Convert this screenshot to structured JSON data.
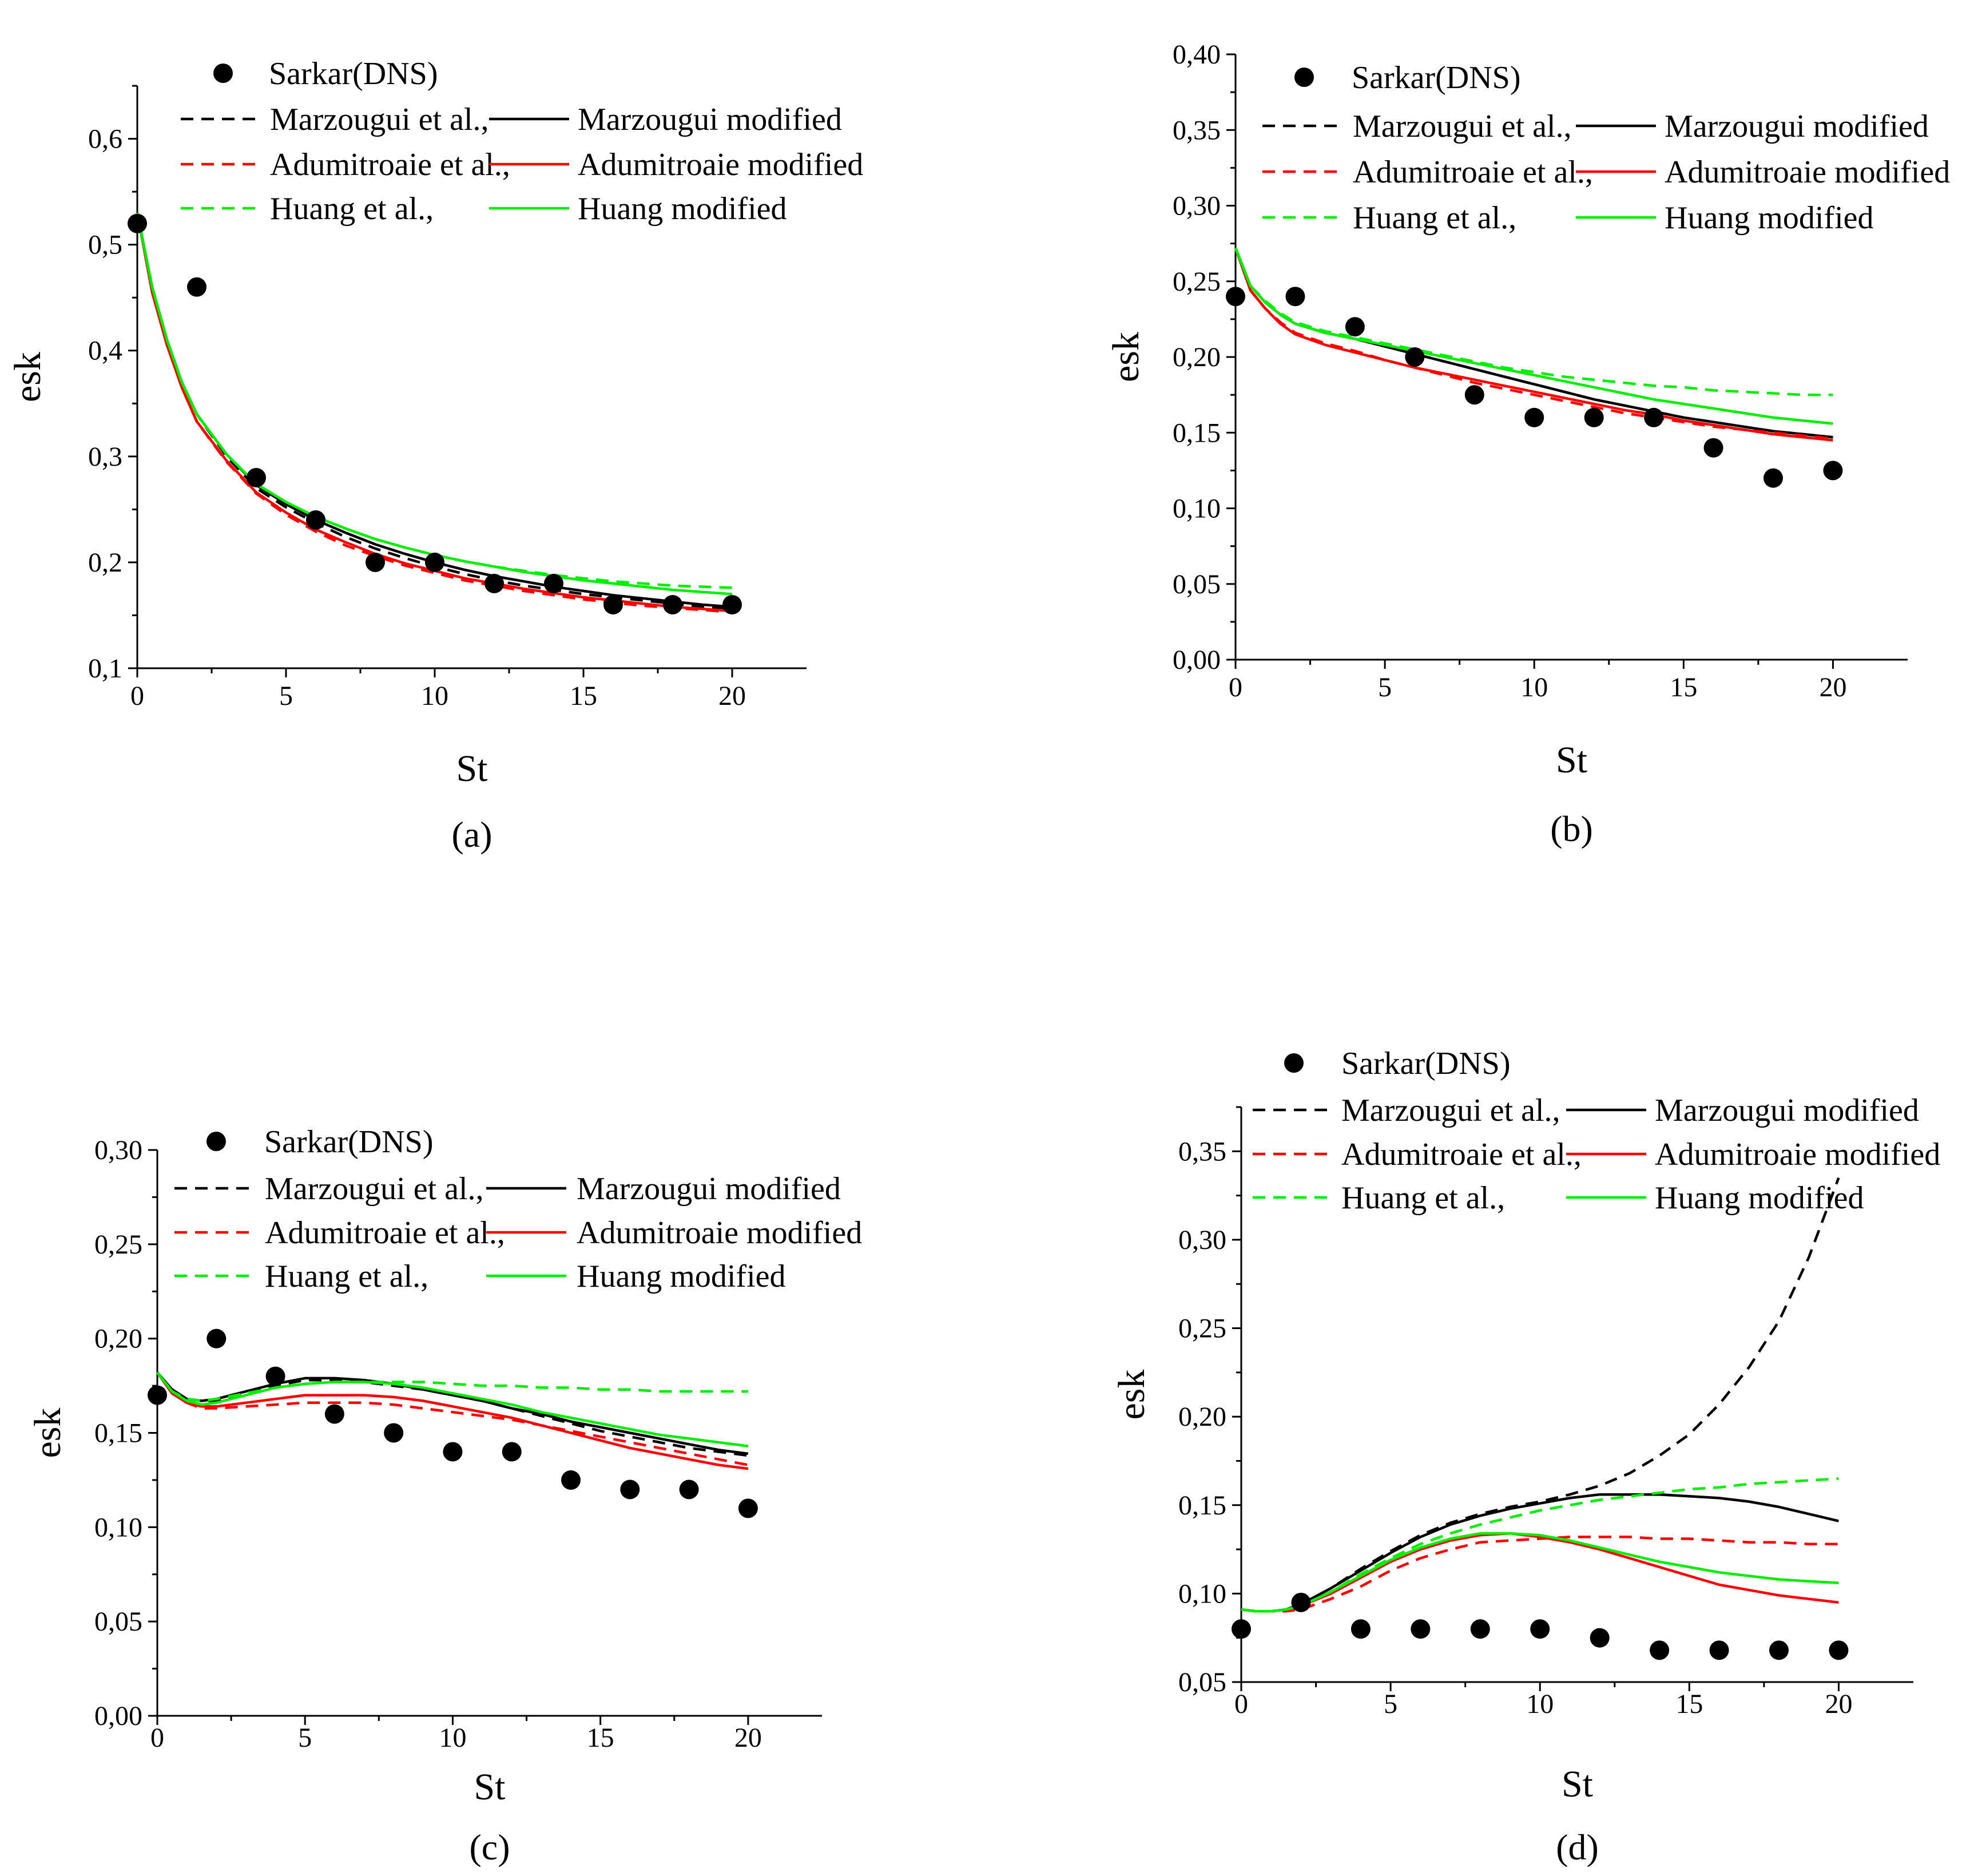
{
  "figure": {
    "legend": {
      "dns": "Sarkar(DNS)",
      "marzougui": "Marzougui et al.,",
      "marzougui_mod": "Marzougui modified",
      "adumitroaie": "Adumitroaie et al.,",
      "adumitroaie_mod": "Adumitroaie modified",
      "huang": "Huang et al.,",
      "huang_mod": "Huang modified"
    },
    "colors": {
      "marzougui": "#000000",
      "adumitroaie": "#ff0000",
      "huang": "#00ee00",
      "dns": "#000000"
    }
  },
  "chart_data": [
    {
      "type": "line",
      "panel": "(a)",
      "xlabel": "St",
      "ylabel": "esk",
      "xlim": [
        0,
        22.5
      ],
      "ylim": [
        0.1,
        0.65
      ],
      "xticks": [
        0,
        5,
        10,
        15,
        20
      ],
      "yticks": [
        0.1,
        0.2,
        0.3,
        0.4,
        0.5,
        0.6
      ],
      "ytick_labels": [
        "0,1",
        "0,2",
        "0,3",
        "0,4",
        "0,5",
        "0,6"
      ],
      "dns": {
        "x": [
          0,
          2,
          4,
          6,
          8,
          10,
          12,
          14,
          16,
          18,
          20
        ],
        "y": [
          0.52,
          0.46,
          0.28,
          0.24,
          0.2,
          0.2,
          0.18,
          0.18,
          0.16,
          0.16,
          0.16
        ]
      },
      "x": [
        0,
        0.5,
        1,
        1.5,
        2,
        3,
        4,
        5,
        6,
        7,
        8,
        9,
        10,
        11,
        12,
        13,
        14,
        15,
        16,
        17,
        18,
        19,
        20
      ],
      "series": [
        {
          "name": "Marzougui et al.",
          "model": "marzougui",
          "dash": true,
          "values": [
            0.53,
            0.46,
            0.41,
            0.37,
            0.34,
            0.3,
            0.27,
            0.252,
            0.237,
            0.224,
            0.213,
            0.204,
            0.196,
            0.189,
            0.183,
            0.178,
            0.174,
            0.17,
            0.167,
            0.164,
            0.161,
            0.158,
            0.156
          ]
        },
        {
          "name": "Marzougui modified",
          "model": "marzougui",
          "dash": false,
          "values": [
            0.53,
            0.46,
            0.41,
            0.37,
            0.34,
            0.302,
            0.273,
            0.255,
            0.24,
            0.228,
            0.217,
            0.208,
            0.2,
            0.193,
            0.187,
            0.182,
            0.177,
            0.173,
            0.169,
            0.166,
            0.163,
            0.16,
            0.158
          ]
        },
        {
          "name": "Adumitroaie et al.",
          "model": "adumitroaie",
          "dash": true,
          "values": [
            0.53,
            0.455,
            0.405,
            0.365,
            0.333,
            0.295,
            0.265,
            0.245,
            0.229,
            0.216,
            0.206,
            0.197,
            0.19,
            0.183,
            0.178,
            0.173,
            0.169,
            0.165,
            0.162,
            0.159,
            0.157,
            0.155,
            0.153
          ]
        },
        {
          "name": "Adumitroaie modified",
          "model": "adumitroaie",
          "dash": false,
          "values": [
            0.53,
            0.455,
            0.405,
            0.365,
            0.333,
            0.296,
            0.266,
            0.247,
            0.231,
            0.219,
            0.208,
            0.199,
            0.192,
            0.185,
            0.18,
            0.175,
            0.171,
            0.167,
            0.164,
            0.161,
            0.158,
            0.156,
            0.154
          ]
        },
        {
          "name": "Huang et al.",
          "model": "huang",
          "dash": true,
          "values": [
            0.53,
            0.46,
            0.41,
            0.37,
            0.34,
            0.302,
            0.274,
            0.257,
            0.243,
            0.232,
            0.222,
            0.214,
            0.207,
            0.201,
            0.196,
            0.192,
            0.188,
            0.185,
            0.182,
            0.18,
            0.178,
            0.177,
            0.176
          ]
        },
        {
          "name": "Huang modified",
          "model": "huang",
          "dash": false,
          "values": [
            0.53,
            0.46,
            0.41,
            0.37,
            0.34,
            0.302,
            0.274,
            0.257,
            0.243,
            0.232,
            0.222,
            0.214,
            0.207,
            0.201,
            0.196,
            0.191,
            0.187,
            0.183,
            0.18,
            0.177,
            0.174,
            0.172,
            0.17
          ]
        }
      ]
    },
    {
      "type": "line",
      "panel": "(b)",
      "xlabel": "St",
      "ylabel": "esk",
      "xlim": [
        0,
        22.5
      ],
      "ylim": [
        0,
        0.4
      ],
      "xticks": [
        0,
        5,
        10,
        15,
        20
      ],
      "yticks": [
        0,
        0.05,
        0.1,
        0.15,
        0.2,
        0.25,
        0.3,
        0.35,
        0.4
      ],
      "ytick_labels": [
        "0,00",
        "0,05",
        "0,10",
        "0,15",
        "0,20",
        "0,25",
        "0,30",
        "0,35",
        "0,40"
      ],
      "dns": {
        "x": [
          0,
          2,
          4,
          6,
          8,
          10,
          12,
          14,
          16,
          18,
          20
        ],
        "y": [
          0.24,
          0.24,
          0.22,
          0.2,
          0.175,
          0.16,
          0.16,
          0.16,
          0.14,
          0.12,
          0.125
        ]
      },
      "x": [
        0,
        0.5,
        1,
        1.5,
        2,
        3,
        4,
        5,
        6,
        7,
        8,
        9,
        10,
        11,
        12,
        13,
        14,
        15,
        16,
        17,
        18,
        19,
        20
      ],
      "series": [
        {
          "name": "Marzougui et al.",
          "model": "marzougui",
          "dash": true,
          "values": [
            0.272,
            0.247,
            0.236,
            0.228,
            0.222,
            0.216,
            0.212,
            0.207,
            0.202,
            0.197,
            0.192,
            0.187,
            0.182,
            0.177,
            0.172,
            0.168,
            0.164,
            0.16,
            0.157,
            0.154,
            0.151,
            0.149,
            0.147
          ]
        },
        {
          "name": "Marzougui modified",
          "model": "marzougui",
          "dash": false,
          "values": [
            0.272,
            0.247,
            0.236,
            0.228,
            0.222,
            0.216,
            0.212,
            0.207,
            0.202,
            0.197,
            0.192,
            0.187,
            0.182,
            0.177,
            0.172,
            0.168,
            0.164,
            0.16,
            0.157,
            0.154,
            0.151,
            0.149,
            0.147
          ]
        },
        {
          "name": "Adumitroaie et al.",
          "model": "adumitroaie",
          "dash": true,
          "values": [
            0.272,
            0.244,
            0.232,
            0.223,
            0.216,
            0.209,
            0.204,
            0.198,
            0.193,
            0.188,
            0.183,
            0.179,
            0.175,
            0.171,
            0.167,
            0.163,
            0.16,
            0.157,
            0.154,
            0.152,
            0.15,
            0.148,
            0.146
          ]
        },
        {
          "name": "Adumitroaie modified",
          "model": "adumitroaie",
          "dash": false,
          "values": [
            0.272,
            0.244,
            0.232,
            0.222,
            0.215,
            0.208,
            0.203,
            0.198,
            0.193,
            0.189,
            0.185,
            0.181,
            0.177,
            0.173,
            0.169,
            0.165,
            0.162,
            0.158,
            0.155,
            0.152,
            0.149,
            0.147,
            0.145
          ]
        },
        {
          "name": "Huang et al.",
          "model": "huang",
          "dash": true,
          "values": [
            0.272,
            0.247,
            0.237,
            0.229,
            0.223,
            0.217,
            0.213,
            0.209,
            0.205,
            0.201,
            0.197,
            0.193,
            0.19,
            0.187,
            0.185,
            0.183,
            0.181,
            0.18,
            0.178,
            0.177,
            0.176,
            0.175,
            0.175
          ]
        },
        {
          "name": "Huang modified",
          "model": "huang",
          "dash": false,
          "values": [
            0.272,
            0.247,
            0.236,
            0.228,
            0.222,
            0.216,
            0.212,
            0.208,
            0.204,
            0.2,
            0.196,
            0.192,
            0.188,
            0.184,
            0.18,
            0.176,
            0.172,
            0.169,
            0.166,
            0.163,
            0.16,
            0.158,
            0.156
          ]
        }
      ]
    },
    {
      "type": "line",
      "panel": "(c)",
      "xlabel": "St",
      "ylabel": "esk",
      "xlim": [
        0,
        22.5
      ],
      "ylim": [
        0,
        0.3
      ],
      "xticks": [
        0,
        5,
        10,
        15,
        20
      ],
      "yticks": [
        0,
        0.05,
        0.1,
        0.15,
        0.2,
        0.25,
        0.3
      ],
      "ytick_labels": [
        "0,00",
        "0,05",
        "0,10",
        "0,15",
        "0,20",
        "0,25",
        "0,30"
      ],
      "dns": {
        "x": [
          0,
          2,
          4,
          6,
          8,
          10,
          12,
          14,
          16,
          18,
          20
        ],
        "y": [
          0.17,
          0.2,
          0.18,
          0.16,
          0.15,
          0.14,
          0.14,
          0.125,
          0.12,
          0.12,
          0.11
        ]
      },
      "x": [
        0,
        0.5,
        1,
        1.5,
        2,
        3,
        4,
        5,
        6,
        7,
        8,
        9,
        10,
        11,
        12,
        13,
        14,
        15,
        16,
        17,
        18,
        19,
        20
      ],
      "series": [
        {
          "name": "Marzougui et al.",
          "model": "marzougui",
          "dash": true,
          "values": [
            0.182,
            0.173,
            0.168,
            0.167,
            0.167,
            0.171,
            0.175,
            0.178,
            0.178,
            0.177,
            0.175,
            0.173,
            0.17,
            0.167,
            0.163,
            0.159,
            0.155,
            0.151,
            0.148,
            0.145,
            0.142,
            0.14,
            0.138
          ]
        },
        {
          "name": "Marzougui modified",
          "model": "marzougui",
          "dash": false,
          "values": [
            0.182,
            0.173,
            0.168,
            0.167,
            0.168,
            0.172,
            0.176,
            0.179,
            0.179,
            0.178,
            0.176,
            0.173,
            0.17,
            0.167,
            0.163,
            0.16,
            0.156,
            0.153,
            0.15,
            0.147,
            0.144,
            0.141,
            0.139
          ]
        },
        {
          "name": "Adumitroaie et al.",
          "model": "adumitroaie",
          "dash": true,
          "values": [
            0.182,
            0.171,
            0.166,
            0.163,
            0.163,
            0.164,
            0.165,
            0.166,
            0.166,
            0.166,
            0.165,
            0.163,
            0.161,
            0.159,
            0.157,
            0.154,
            0.151,
            0.148,
            0.145,
            0.142,
            0.139,
            0.136,
            0.133
          ]
        },
        {
          "name": "Adumitroaie modified",
          "model": "adumitroaie",
          "dash": false,
          "values": [
            0.182,
            0.171,
            0.166,
            0.164,
            0.164,
            0.166,
            0.168,
            0.17,
            0.17,
            0.17,
            0.169,
            0.167,
            0.164,
            0.161,
            0.158,
            0.154,
            0.15,
            0.146,
            0.142,
            0.139,
            0.136,
            0.133,
            0.131
          ]
        },
        {
          "name": "Huang et al.",
          "model": "huang",
          "dash": true,
          "values": [
            0.182,
            0.172,
            0.168,
            0.167,
            0.168,
            0.171,
            0.174,
            0.176,
            0.177,
            0.177,
            0.177,
            0.177,
            0.176,
            0.175,
            0.175,
            0.174,
            0.174,
            0.173,
            0.173,
            0.172,
            0.172,
            0.172,
            0.172
          ]
        },
        {
          "name": "Huang modified",
          "model": "huang",
          "dash": false,
          "values": [
            0.182,
            0.172,
            0.167,
            0.165,
            0.166,
            0.17,
            0.174,
            0.176,
            0.177,
            0.177,
            0.176,
            0.174,
            0.171,
            0.168,
            0.165,
            0.161,
            0.158,
            0.155,
            0.152,
            0.149,
            0.147,
            0.145,
            0.143
          ]
        }
      ]
    },
    {
      "type": "line",
      "panel": "(d)",
      "xlabel": "St",
      "ylabel": "esk",
      "xlim": [
        0,
        22.5
      ],
      "ylim": [
        0.05,
        0.375
      ],
      "xticks": [
        0,
        5,
        10,
        15,
        20
      ],
      "yticks": [
        0.05,
        0.1,
        0.15,
        0.2,
        0.25,
        0.3,
        0.35
      ],
      "ytick_labels": [
        "0,05",
        "0,10",
        "0,15",
        "0,20",
        "0,25",
        "0,30",
        "0,35"
      ],
      "dns": {
        "x": [
          0,
          2,
          4,
          6,
          8,
          10,
          12,
          14,
          16,
          18,
          20
        ],
        "y": [
          0.08,
          0.095,
          0.08,
          0.08,
          0.08,
          0.08,
          0.075,
          0.068,
          0.068,
          0.068,
          0.068
        ]
      },
      "x": [
        0,
        0.5,
        1,
        1.5,
        2,
        3,
        4,
        5,
        6,
        7,
        8,
        9,
        10,
        11,
        12,
        13,
        14,
        15,
        16,
        17,
        18,
        19,
        20
      ],
      "series": [
        {
          "name": "Marzougui et al.",
          "model": "marzougui",
          "dash": true,
          "values": [
            0.091,
            0.09,
            0.09,
            0.091,
            0.094,
            0.103,
            0.114,
            0.124,
            0.133,
            0.14,
            0.145,
            0.149,
            0.152,
            0.156,
            0.161,
            0.168,
            0.178,
            0.19,
            0.207,
            0.228,
            0.254,
            0.29,
            0.335
          ]
        },
        {
          "name": "Marzougui modified",
          "model": "marzougui",
          "dash": false,
          "values": [
            0.091,
            0.09,
            0.09,
            0.091,
            0.094,
            0.103,
            0.113,
            0.123,
            0.132,
            0.139,
            0.144,
            0.148,
            0.151,
            0.154,
            0.156,
            0.156,
            0.156,
            0.155,
            0.154,
            0.152,
            0.149,
            0.145,
            0.141
          ]
        },
        {
          "name": "Adumitroaie et al.",
          "model": "adumitroaie",
          "dash": true,
          "values": [
            0.091,
            0.09,
            0.09,
            0.09,
            0.091,
            0.097,
            0.104,
            0.113,
            0.12,
            0.125,
            0.129,
            0.13,
            0.131,
            0.132,
            0.132,
            0.132,
            0.131,
            0.131,
            0.13,
            0.129,
            0.129,
            0.128,
            0.128
          ]
        },
        {
          "name": "Adumitroaie modified",
          "model": "adumitroaie",
          "dash": false,
          "values": [
            0.091,
            0.09,
            0.09,
            0.091,
            0.093,
            0.1,
            0.109,
            0.118,
            0.125,
            0.13,
            0.133,
            0.134,
            0.132,
            0.129,
            0.125,
            0.12,
            0.115,
            0.11,
            0.105,
            0.102,
            0.099,
            0.097,
            0.095
          ]
        },
        {
          "name": "Huang et al.",
          "model": "huang",
          "dash": true,
          "values": [
            0.091,
            0.09,
            0.09,
            0.091,
            0.093,
            0.101,
            0.111,
            0.12,
            0.128,
            0.134,
            0.139,
            0.143,
            0.147,
            0.15,
            0.153,
            0.155,
            0.157,
            0.159,
            0.16,
            0.162,
            0.163,
            0.164,
            0.165
          ]
        },
        {
          "name": "Huang modified",
          "model": "huang",
          "dash": false,
          "values": [
            0.091,
            0.09,
            0.09,
            0.091,
            0.093,
            0.101,
            0.11,
            0.119,
            0.126,
            0.131,
            0.134,
            0.134,
            0.133,
            0.13,
            0.126,
            0.122,
            0.118,
            0.115,
            0.112,
            0.11,
            0.108,
            0.107,
            0.106
          ]
        }
      ]
    }
  ]
}
